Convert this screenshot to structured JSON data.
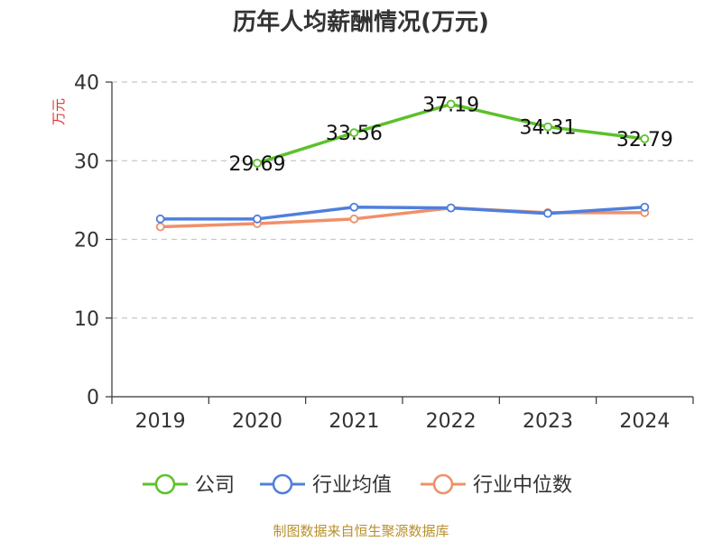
{
  "chart_data": {
    "type": "line",
    "title": "历年人均薪酬情况(万元)",
    "ylabel": "万元",
    "xlabel": "",
    "categories": [
      "2019",
      "2020",
      "2021",
      "2022",
      "2023",
      "2024"
    ],
    "ylim": [
      0,
      40
    ],
    "yticks": [
      0,
      10,
      20,
      30,
      40
    ],
    "grid": true,
    "legend_position": "bottom",
    "series": [
      {
        "name": "公司",
        "color": "#5cc12a",
        "values": [
          null,
          29.69,
          33.56,
          37.19,
          34.31,
          32.79
        ],
        "labels": [
          "",
          "29.69",
          "33.56",
          "37.19",
          "34.31",
          "32.79"
        ]
      },
      {
        "name": "行业均值",
        "color": "#4f7fdc",
        "values": [
          22.6,
          22.6,
          24.1,
          24.0,
          23.3,
          24.1
        ]
      },
      {
        "name": "行业中位数",
        "color": "#f0906a",
        "values": [
          21.6,
          22.0,
          22.6,
          24.0,
          23.4,
          23.4
        ]
      }
    ]
  },
  "footer": {
    "source": "制图数据来自恒生聚源数据库"
  }
}
